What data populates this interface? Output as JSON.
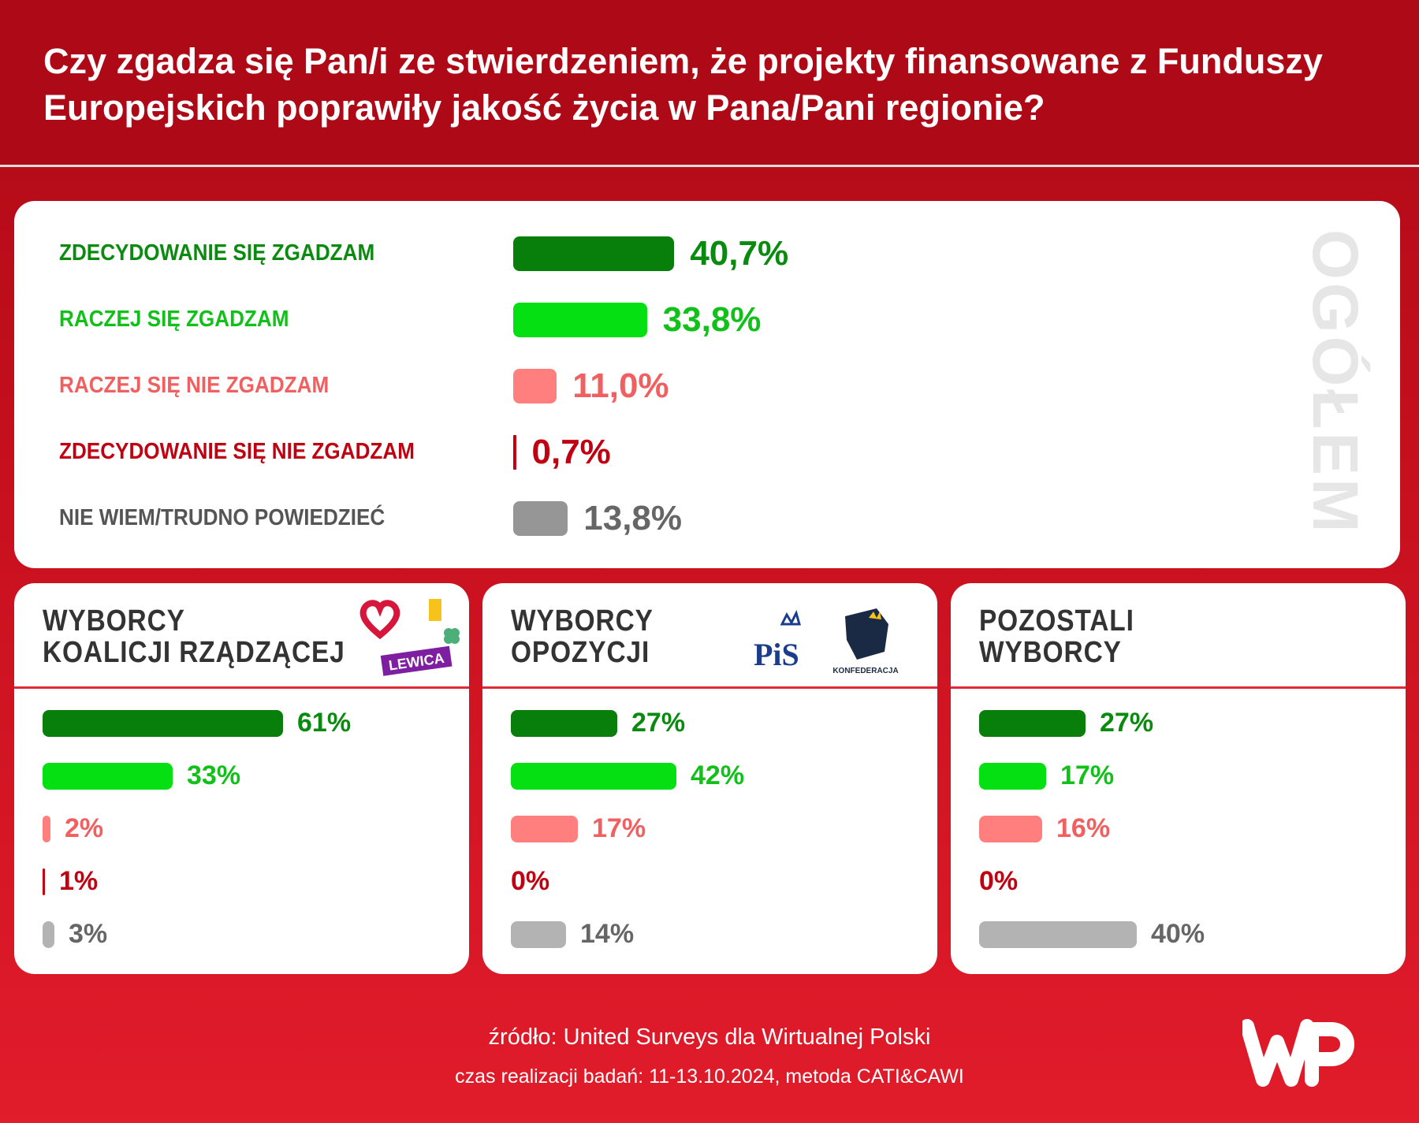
{
  "title": "Czy zgadza się Pan/i ze stwierdzeniem, że projekty finansowane z Funduszy Europejskich poprawiły jakość życia w Pana/Pani regionie?",
  "colors": {
    "strong_agree": "#077f0a",
    "agree": "#05e012",
    "disagree": "#ff7f7f",
    "strong_disagree": "#c00010",
    "dont_know": "#969696",
    "dont_know_light": "#b3b3b3"
  },
  "chart_data": [
    {
      "type": "bar",
      "title": "OGÓŁEM",
      "categories": [
        "ZDECYDOWANIE SIĘ ZGADZAM",
        "RACZEJ SIĘ ZGADZAM",
        "RACZEJ SIĘ NIE ZGADZAM",
        "ZDECYDOWANIE SIĘ NIE ZGADZAM",
        "NIE WIEM/TRUDNO POWIEDZIEĆ"
      ],
      "values": [
        40.7,
        33.8,
        11.0,
        0.7,
        13.8
      ],
      "labels": [
        "40,7%",
        "33,8%",
        "11,0%",
        "0,7%",
        "13,8%"
      ]
    },
    {
      "type": "bar",
      "title": "WYBORCY KOALICJI RZĄDZĄCEJ",
      "title_lines": [
        "WYBORCY",
        "KOALICJI RZĄDZĄCEJ"
      ],
      "values": [
        61,
        33,
        2,
        1,
        3
      ],
      "labels": [
        "61%",
        "33%",
        "2%",
        "1%",
        "3%"
      ],
      "logos": [
        "KO heart",
        "Trzecia Droga 2050",
        "LEWICA"
      ]
    },
    {
      "type": "bar",
      "title": "WYBORCY OPOZYCJI",
      "title_lines": [
        "WYBORCY",
        "OPOZYCJI"
      ],
      "values": [
        27,
        42,
        17,
        0,
        14
      ],
      "labels": [
        "27%",
        "42%",
        "17%",
        "0%",
        "14%"
      ],
      "logos": [
        "PiS",
        "KONFEDERACJA"
      ]
    },
    {
      "type": "bar",
      "title": "POZOSTALI WYBORCY",
      "title_lines": [
        "POZOSTALI",
        "WYBORCY"
      ],
      "values": [
        27,
        17,
        16,
        0,
        40
      ],
      "labels": [
        "27%",
        "17%",
        "16%",
        "0%",
        "40%"
      ]
    }
  ],
  "footer": {
    "source": "źródło: United Surveys dla Wirtualnej Polski",
    "details": "czas realizacji badań: 11-13.10.2024, metoda CATI&CAWI",
    "brand": "WP"
  }
}
